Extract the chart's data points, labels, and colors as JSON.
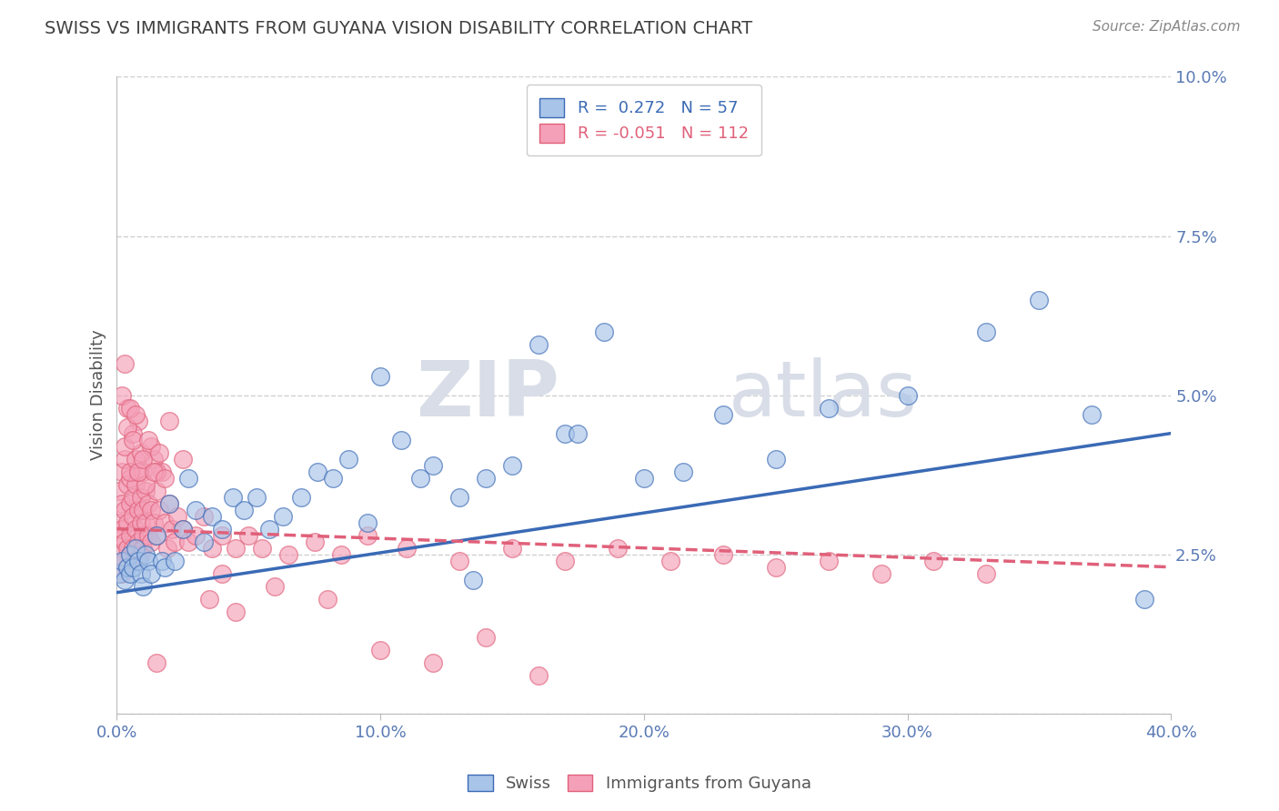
{
  "title": "SWISS VS IMMIGRANTS FROM GUYANA VISION DISABILITY CORRELATION CHART",
  "source_text": "Source: ZipAtlas.com",
  "xlabel": "",
  "ylabel": "Vision Disability",
  "xlim": [
    0.0,
    0.4
  ],
  "ylim": [
    0.0,
    0.1
  ],
  "xticks": [
    0.0,
    0.1,
    0.2,
    0.3,
    0.4
  ],
  "yticks": [
    0.0,
    0.025,
    0.05,
    0.075,
    0.1
  ],
  "xticklabels": [
    "0.0%",
    "10.0%",
    "20.0%",
    "30.0%",
    "40.0%"
  ],
  "yticklabels": [
    "",
    "2.5%",
    "5.0%",
    "7.5%",
    "10.0%"
  ],
  "swiss_R": 0.272,
  "swiss_N": 57,
  "guyana_R": -0.051,
  "guyana_N": 112,
  "swiss_color": "#a8c4e8",
  "guyana_color": "#f4a0b8",
  "swiss_line_color": "#3a6ab5",
  "guyana_line_color": "#e0607a",
  "watermark_zip": "ZIP",
  "watermark_atlas": "atlas",
  "background_color": "#ffffff",
  "grid_color": "#d0d0d0",
  "title_color": "#404040",
  "swiss_line_start_y": 0.019,
  "swiss_line_end_y": 0.044,
  "guyana_line_start_y": 0.029,
  "guyana_line_end_y": 0.023,
  "swiss_x": [
    0.001,
    0.002,
    0.003,
    0.004,
    0.005,
    0.005,
    0.006,
    0.007,
    0.008,
    0.009,
    0.01,
    0.011,
    0.012,
    0.013,
    0.015,
    0.017,
    0.018,
    0.02,
    0.022,
    0.025,
    0.027,
    0.03,
    0.033,
    0.036,
    0.04,
    0.044,
    0.048,
    0.053,
    0.058,
    0.063,
    0.07,
    0.076,
    0.082,
    0.088,
    0.095,
    0.1,
    0.108,
    0.115,
    0.12,
    0.13,
    0.14,
    0.15,
    0.16,
    0.17,
    0.185,
    0.2,
    0.215,
    0.23,
    0.25,
    0.27,
    0.3,
    0.33,
    0.35,
    0.37,
    0.39,
    0.135,
    0.175
  ],
  "swiss_y": [
    0.022,
    0.024,
    0.021,
    0.023,
    0.022,
    0.025,
    0.023,
    0.026,
    0.024,
    0.022,
    0.02,
    0.025,
    0.024,
    0.022,
    0.028,
    0.024,
    0.023,
    0.033,
    0.024,
    0.029,
    0.037,
    0.032,
    0.027,
    0.031,
    0.029,
    0.034,
    0.032,
    0.034,
    0.029,
    0.031,
    0.034,
    0.038,
    0.037,
    0.04,
    0.03,
    0.053,
    0.043,
    0.037,
    0.039,
    0.034,
    0.037,
    0.039,
    0.058,
    0.044,
    0.06,
    0.037,
    0.038,
    0.047,
    0.04,
    0.048,
    0.05,
    0.06,
    0.065,
    0.047,
    0.018,
    0.021,
    0.044
  ],
  "guyana_x": [
    0.001,
    0.001,
    0.001,
    0.001,
    0.002,
    0.002,
    0.002,
    0.002,
    0.003,
    0.003,
    0.003,
    0.003,
    0.004,
    0.004,
    0.004,
    0.005,
    0.005,
    0.005,
    0.005,
    0.006,
    0.006,
    0.006,
    0.007,
    0.007,
    0.007,
    0.008,
    0.008,
    0.008,
    0.009,
    0.009,
    0.009,
    0.01,
    0.01,
    0.01,
    0.01,
    0.011,
    0.011,
    0.012,
    0.012,
    0.013,
    0.013,
    0.014,
    0.014,
    0.015,
    0.015,
    0.016,
    0.017,
    0.018,
    0.019,
    0.02,
    0.021,
    0.022,
    0.023,
    0.025,
    0.027,
    0.03,
    0.033,
    0.036,
    0.04,
    0.045,
    0.05,
    0.055,
    0.065,
    0.075,
    0.085,
    0.095,
    0.11,
    0.13,
    0.15,
    0.17,
    0.19,
    0.21,
    0.23,
    0.25,
    0.27,
    0.29,
    0.31,
    0.33,
    0.003,
    0.008,
    0.005,
    0.006,
    0.004,
    0.007,
    0.009,
    0.011,
    0.013,
    0.015,
    0.002,
    0.003,
    0.004,
    0.005,
    0.006,
    0.007,
    0.008,
    0.01,
    0.012,
    0.014,
    0.016,
    0.018,
    0.02,
    0.025,
    0.015,
    0.035,
    0.04,
    0.045,
    0.06,
    0.08,
    0.1,
    0.12,
    0.14,
    0.16
  ],
  "guyana_y": [
    0.03,
    0.028,
    0.035,
    0.025,
    0.033,
    0.038,
    0.029,
    0.022,
    0.032,
    0.027,
    0.04,
    0.024,
    0.03,
    0.026,
    0.036,
    0.028,
    0.033,
    0.025,
    0.037,
    0.031,
    0.026,
    0.034,
    0.029,
    0.036,
    0.024,
    0.032,
    0.027,
    0.038,
    0.03,
    0.025,
    0.034,
    0.028,
    0.032,
    0.026,
    0.038,
    0.03,
    0.035,
    0.028,
    0.033,
    0.027,
    0.032,
    0.04,
    0.03,
    0.028,
    0.035,
    0.032,
    0.038,
    0.03,
    0.026,
    0.033,
    0.029,
    0.027,
    0.031,
    0.029,
    0.027,
    0.028,
    0.031,
    0.026,
    0.028,
    0.026,
    0.028,
    0.026,
    0.025,
    0.027,
    0.025,
    0.028,
    0.026,
    0.024,
    0.026,
    0.024,
    0.026,
    0.024,
    0.025,
    0.023,
    0.024,
    0.022,
    0.024,
    0.022,
    0.042,
    0.046,
    0.038,
    0.044,
    0.048,
    0.04,
    0.041,
    0.036,
    0.042,
    0.038,
    0.05,
    0.055,
    0.045,
    0.048,
    0.043,
    0.047,
    0.038,
    0.04,
    0.043,
    0.038,
    0.041,
    0.037,
    0.046,
    0.04,
    0.008,
    0.018,
    0.022,
    0.016,
    0.02,
    0.018,
    0.01,
    0.008,
    0.012,
    0.006
  ]
}
